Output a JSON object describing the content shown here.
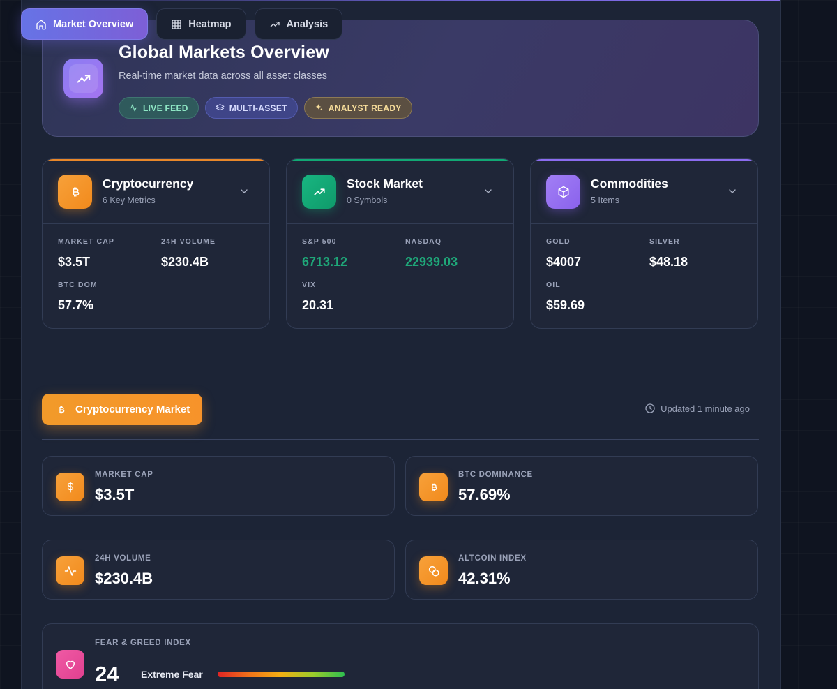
{
  "tabs": [
    {
      "label": "Market Overview",
      "icon": "home-icon",
      "active": true
    },
    {
      "label": "Heatmap",
      "icon": "grid-icon",
      "active": false
    },
    {
      "label": "Analysis",
      "icon": "trending-up-icon",
      "active": false
    }
  ],
  "hero": {
    "title": "Global Markets Overview",
    "subtitle": "Real-time market data across all asset classes",
    "badges": [
      "LIVE FEED",
      "MULTI-ASSET",
      "ANALYST READY"
    ]
  },
  "categories": [
    {
      "title": "Cryptocurrency",
      "subtitle": "6 Key Metrics",
      "accent": "#f5962a",
      "metrics": [
        {
          "label": "MARKET CAP",
          "value": "$3.5T"
        },
        {
          "label": "24H VOLUME",
          "value": "$230.4B"
        },
        {
          "label": "BTC DOM",
          "value": "57.7%"
        }
      ]
    },
    {
      "title": "Stock Market",
      "subtitle": "0 Symbols",
      "accent": "#12a874",
      "metrics": [
        {
          "label": "S&P 500",
          "value": "6713.12"
        },
        {
          "label": "NASDAQ",
          "value": "22939.03"
        },
        {
          "label": "VIX",
          "value": "20.31"
        }
      ]
    },
    {
      "title": "Commodities",
      "subtitle": "5 Items",
      "accent": "#8b6cf0",
      "metrics": [
        {
          "label": "GOLD",
          "value": "$4007"
        },
        {
          "label": "SILVER",
          "value": "$48.18"
        },
        {
          "label": "OIL",
          "value": "$59.69"
        }
      ]
    }
  ],
  "section": {
    "title": "Cryptocurrency Market",
    "updated": "Updated 1 minute ago"
  },
  "stats": [
    {
      "label": "MARKET CAP",
      "value": "$3.5T",
      "icon": "dollar-icon"
    },
    {
      "label": "BTC DOMINANCE",
      "value": "57.69%",
      "icon": "bitcoin-icon"
    },
    {
      "label": "24H VOLUME",
      "value": "$230.4B",
      "icon": "activity-icon"
    },
    {
      "label": "ALTCOIN INDEX",
      "value": "42.31%",
      "icon": "coins-icon"
    }
  ],
  "fear_greed": {
    "label": "FEAR & GREED INDEX",
    "value": "24",
    "sentiment": "Extreme Fear"
  },
  "colors": {
    "accent_purple": "#7d6ef0",
    "crypto_orange": "#f5962a",
    "stock_green": "#12a874",
    "commodity_purple": "#8b6cf0",
    "positive_green": "#1fa779"
  }
}
